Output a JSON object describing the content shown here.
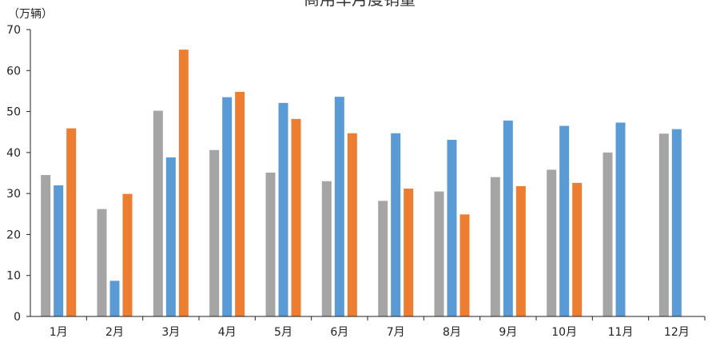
{
  "chart_data": {
    "type": "bar",
    "title": "商用车月度销量",
    "ylabel": "（万辆）",
    "xlabel": "",
    "ylim": [
      0,
      70
    ],
    "yticks": [
      0,
      10,
      20,
      30,
      40,
      50,
      60,
      70
    ],
    "grid": false,
    "categories": [
      "1月",
      "2月",
      "3月",
      "4月",
      "5月",
      "6月",
      "7月",
      "8月",
      "9月",
      "10月",
      "11月",
      "12月"
    ],
    "series": [
      {
        "color": "#a5a5a5",
        "values": [
          34.5,
          26.2,
          50.2,
          40.6,
          35.1,
          33.0,
          28.2,
          30.5,
          34.0,
          35.8,
          40.0,
          44.6
        ]
      },
      {
        "color": "#5b9bd5",
        "values": [
          32.0,
          8.7,
          38.8,
          53.5,
          52.1,
          53.6,
          44.7,
          43.1,
          47.8,
          46.5,
          47.3,
          45.7
        ]
      },
      {
        "color": "#ed7d31",
        "values": [
          45.9,
          29.9,
          65.1,
          54.8,
          48.2,
          44.7,
          31.2,
          24.9,
          31.8,
          32.6,
          null,
          null
        ]
      }
    ]
  }
}
